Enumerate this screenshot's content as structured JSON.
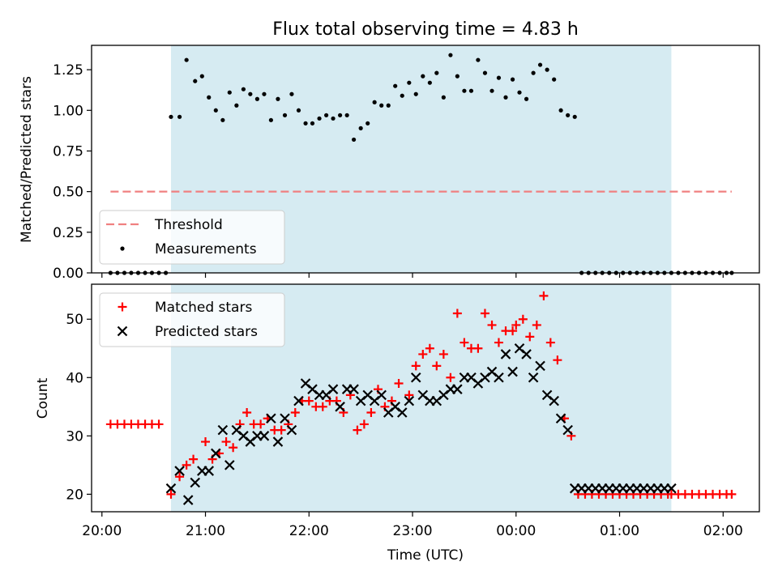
{
  "chart_data": [
    {
      "type": "scatter",
      "title": "Flux total observing time = 4.83 h",
      "xlabel": "",
      "ylabel": "Matched/Predicted stars",
      "xlim": [
        19.9,
        26.35
      ],
      "ylim": [
        0,
        1.4
      ],
      "yticks": [
        0.0,
        0.25,
        0.5,
        0.75,
        1.0,
        1.25
      ],
      "ytick_labels": [
        "0.00",
        "0.25",
        "0.50",
        "0.75",
        "1.00",
        "1.25"
      ],
      "shaded_span": [
        20.667,
        25.5
      ],
      "legend": {
        "position": "lower-left",
        "entries": [
          "Threshold",
          "Measurements"
        ]
      },
      "threshold": {
        "name": "Threshold",
        "value": 0.5,
        "x_range": [
          20.083,
          26.083
        ],
        "color": "#f08080",
        "style": "dashed"
      },
      "series": [
        {
          "name": "Measurements",
          "color": "#000000",
          "marker": "dot",
          "x": [
            20.083,
            20.15,
            20.217,
            20.283,
            20.35,
            20.417,
            20.483,
            20.55,
            20.617,
            20.667,
            20.75,
            20.817,
            20.9,
            20.967,
            21.033,
            21.1,
            21.167,
            21.233,
            21.3,
            21.367,
            21.433,
            21.5,
            21.567,
            21.633,
            21.7,
            21.767,
            21.833,
            21.9,
            21.967,
            22.033,
            22.1,
            22.167,
            22.233,
            22.3,
            22.367,
            22.433,
            22.5,
            22.567,
            22.633,
            22.7,
            22.767,
            22.833,
            22.9,
            22.967,
            23.033,
            23.1,
            23.167,
            23.233,
            23.3,
            23.367,
            23.433,
            23.5,
            23.567,
            23.633,
            23.7,
            23.767,
            23.833,
            23.9,
            23.967,
            24.033,
            24.1,
            24.167,
            24.233,
            24.3,
            24.367,
            24.433,
            24.5,
            24.567,
            24.633,
            24.7,
            24.767,
            24.833,
            24.9,
            24.967,
            25.033,
            25.1,
            25.167,
            25.233,
            25.3,
            25.367,
            25.433,
            25.5,
            25.567,
            25.633,
            25.7,
            25.767,
            25.833,
            25.9,
            25.967,
            26.033,
            26.083
          ],
          "y": [
            0,
            0,
            0,
            0,
            0,
            0,
            0,
            0,
            0,
            0.96,
            0.96,
            1.31,
            1.18,
            1.21,
            1.08,
            1.0,
            0.94,
            1.11,
            1.03,
            1.13,
            1.1,
            1.07,
            1.1,
            0.94,
            1.07,
            0.97,
            1.1,
            1.0,
            0.92,
            0.92,
            0.95,
            0.97,
            0.95,
            0.97,
            0.97,
            0.82,
            0.89,
            0.92,
            1.05,
            1.03,
            1.03,
            1.15,
            1.09,
            1.17,
            1.1,
            1.21,
            1.17,
            1.23,
            1.08,
            1.34,
            1.21,
            1.12,
            1.12,
            1.31,
            1.23,
            1.12,
            1.2,
            1.08,
            1.19,
            1.11,
            1.07,
            1.23,
            1.28,
            1.25,
            1.19,
            1.0,
            0.97,
            0.96,
            0,
            0,
            0,
            0,
            0,
            0,
            0,
            0,
            0,
            0,
            0,
            0,
            0,
            0,
            0,
            0,
            0,
            0,
            0,
            0,
            0,
            0,
            0
          ]
        }
      ]
    },
    {
      "type": "scatter",
      "title": "",
      "xlabel": "Time (UTC)",
      "ylabel": "Count",
      "xlim": [
        19.9,
        26.35
      ],
      "ylim": [
        17,
        56
      ],
      "yticks": [
        20,
        30,
        40,
        50
      ],
      "ytick_labels": [
        "20",
        "30",
        "40",
        "50"
      ],
      "xticks": [
        20,
        21,
        22,
        23,
        24,
        25,
        26
      ],
      "xtick_labels": [
        "20:00",
        "21:00",
        "22:00",
        "23:00",
        "00:00",
        "01:00",
        "02:00"
      ],
      "shaded_span": [
        20.667,
        25.5
      ],
      "legend": {
        "position": "top-left",
        "entries": [
          "Matched stars",
          "Predicted stars"
        ]
      },
      "series": [
        {
          "name": "Matched stars",
          "color": "#ff0000",
          "marker": "plus",
          "x": [
            20.083,
            20.15,
            20.217,
            20.283,
            20.35,
            20.417,
            20.483,
            20.55,
            20.667,
            20.75,
            20.817,
            20.883,
            21.0,
            21.067,
            21.133,
            21.2,
            21.267,
            21.333,
            21.4,
            21.467,
            21.533,
            21.6,
            21.667,
            21.733,
            21.8,
            21.867,
            21.933,
            22.0,
            22.067,
            22.133,
            22.2,
            22.267,
            22.333,
            22.4,
            22.467,
            22.533,
            22.6,
            22.667,
            22.733,
            22.8,
            22.867,
            22.967,
            23.033,
            23.1,
            23.167,
            23.233,
            23.3,
            23.367,
            23.433,
            23.5,
            23.567,
            23.633,
            23.7,
            23.767,
            23.833,
            23.9,
            23.967,
            24.0,
            24.067,
            24.133,
            24.2,
            24.267,
            24.333,
            24.4,
            24.467,
            24.533,
            24.6,
            24.667,
            24.733,
            24.8,
            24.867,
            24.933,
            25.0,
            25.067,
            25.133,
            25.2,
            25.267,
            25.333,
            25.4,
            25.467,
            25.5,
            25.567,
            25.633,
            25.7,
            25.767,
            25.833,
            25.9,
            25.967,
            26.033,
            26.083
          ],
          "y": [
            32,
            32,
            32,
            32,
            32,
            32,
            32,
            32,
            20,
            23,
            25,
            26,
            29,
            26,
            27,
            29,
            28,
            32,
            34,
            32,
            32,
            33,
            31,
            31,
            32,
            34,
            36,
            36,
            35,
            35,
            36,
            36,
            34,
            37,
            31,
            32,
            34,
            38,
            35,
            36,
            39,
            37,
            42,
            44,
            45,
            42,
            44,
            40,
            51,
            46,
            45,
            45,
            51,
            49,
            46,
            48,
            48,
            49,
            50,
            47,
            49,
            54,
            46,
            43,
            33,
            30,
            20,
            20,
            20,
            20,
            20,
            20,
            20,
            20,
            20,
            20,
            20,
            20,
            20,
            20,
            20,
            20,
            20,
            20,
            20,
            20,
            20,
            20,
            20,
            20
          ]
        },
        {
          "name": "Predicted stars",
          "color": "#000000",
          "marker": "cross",
          "x": [
            20.667,
            20.75,
            20.833,
            20.9,
            20.967,
            21.033,
            21.1,
            21.167,
            21.233,
            21.3,
            21.367,
            21.433,
            21.5,
            21.567,
            21.633,
            21.7,
            21.767,
            21.833,
            21.9,
            21.967,
            22.033,
            22.1,
            22.167,
            22.233,
            22.3,
            22.367,
            22.433,
            22.5,
            22.567,
            22.633,
            22.7,
            22.767,
            22.833,
            22.9,
            22.967,
            23.033,
            23.1,
            23.167,
            23.233,
            23.3,
            23.367,
            23.433,
            23.5,
            23.567,
            23.633,
            23.7,
            23.767,
            23.833,
            23.9,
            23.967,
            24.033,
            24.1,
            24.167,
            24.233,
            24.3,
            24.367,
            24.433,
            24.5,
            24.567,
            24.633,
            24.7,
            24.767,
            24.833,
            24.9,
            24.967,
            25.033,
            25.1,
            25.167,
            25.233,
            25.3,
            25.367,
            25.433,
            25.5
          ],
          "y": [
            21,
            24,
            19,
            22,
            24,
            24,
            27,
            31,
            25,
            31,
            30,
            29,
            30,
            30,
            33,
            29,
            33,
            31,
            36,
            39,
            38,
            37,
            37,
            38,
            35,
            38,
            38,
            36,
            37,
            36,
            37,
            34,
            35,
            34,
            36,
            40,
            37,
            36,
            36,
            37,
            38,
            38,
            40,
            40,
            39,
            40,
            41,
            40,
            44,
            41,
            45,
            44,
            40,
            42,
            37,
            36,
            33,
            31,
            21,
            21,
            21,
            21,
            21,
            21,
            21,
            21,
            21,
            21,
            21,
            21,
            21,
            21,
            21
          ]
        }
      ]
    }
  ]
}
